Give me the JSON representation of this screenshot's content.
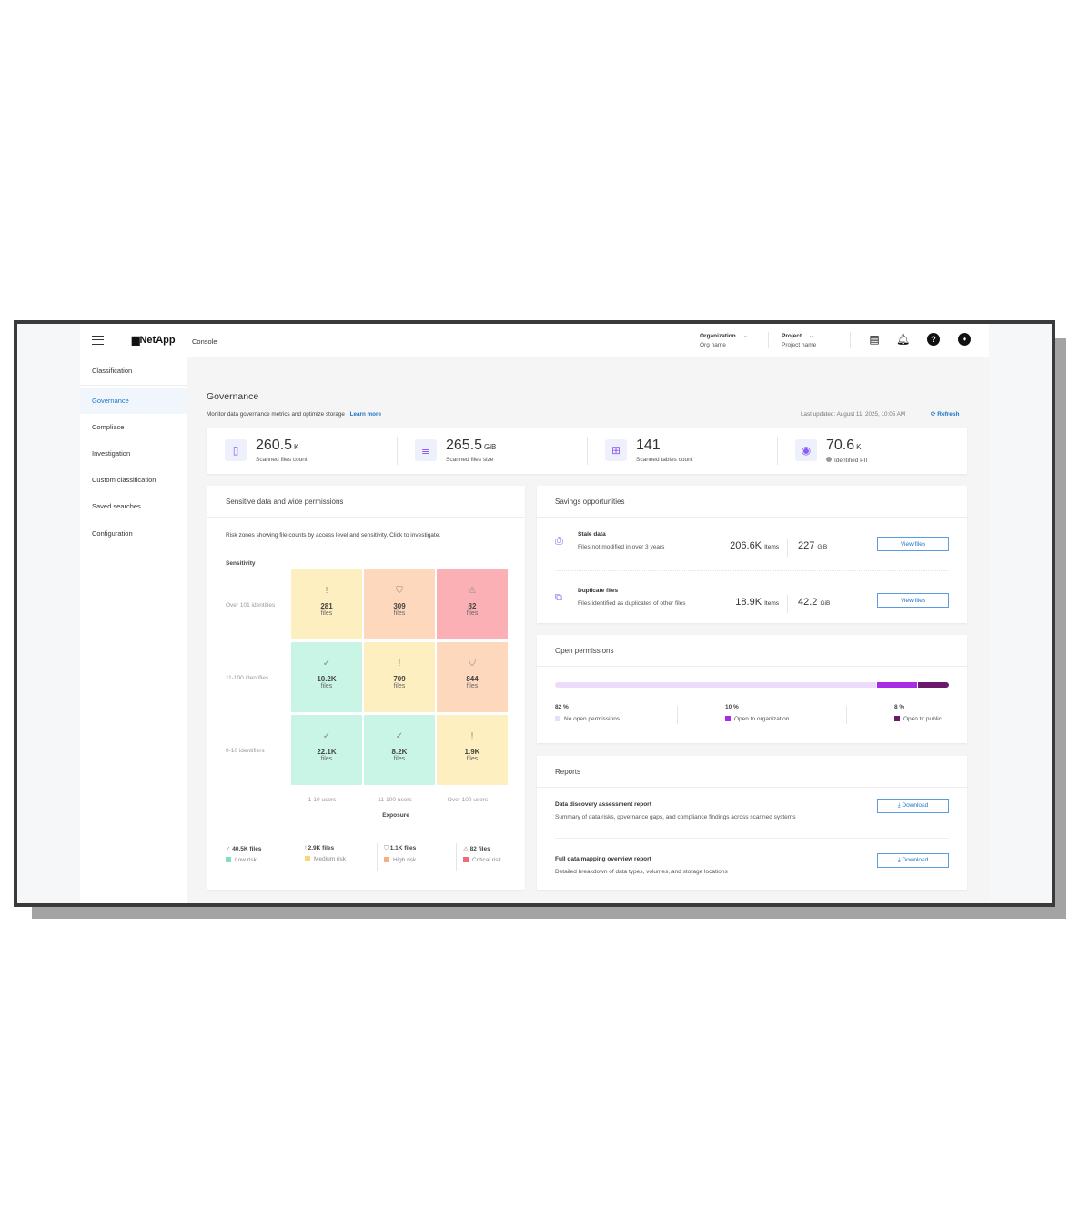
{
  "header": {
    "app_name": "NetApp",
    "console": "Console",
    "org_label": "Organization",
    "org_value": "Org name",
    "project_label": "Project",
    "project_value": "Project name"
  },
  "sidebar": {
    "items": [
      {
        "label": "Classification"
      },
      {
        "label": "Governance",
        "active": true
      },
      {
        "label": "Compliace"
      },
      {
        "label": "Investigation"
      },
      {
        "label": "Custom classification"
      },
      {
        "label": "Saved searches"
      },
      {
        "label": "Configuration"
      }
    ]
  },
  "page": {
    "title": "Governance",
    "subtitle": "Monitor data governance metrics and optimize storage",
    "learn_more": "Learn more",
    "last_updated": "Last updated: August 11, 2025, 10:05 AM",
    "refresh": "Refresh"
  },
  "stats": [
    {
      "value": "260.5",
      "unit": "K",
      "label": "Scanned files count",
      "icon": "file-icon"
    },
    {
      "value": "265.5",
      "unit": "GiB",
      "label": "Scanned files size",
      "icon": "database-icon"
    },
    {
      "value": "141",
      "unit": "",
      "label": "Scanned tables count",
      "icon": "table-icon"
    },
    {
      "value": "70.6",
      "unit": "K",
      "label": "Identified PII",
      "icon": "pii-icon"
    }
  ],
  "sensitive": {
    "title": "Sensitive data and wide permissions",
    "description": "Risk zones showing file counts by access level and sensitivity. Click to investigate.",
    "y_axis": "Sensitivity",
    "x_axis": "Exposure",
    "rows": [
      "Over 101 identifies",
      "11-100 identifies",
      "0-10 identifiers"
    ],
    "cols": [
      "1-10 users",
      "11-100 users",
      "Over 100 users"
    ],
    "cells": [
      [
        {
          "count": "281",
          "unit": "files",
          "risk": "medium"
        },
        {
          "count": "309",
          "unit": "files",
          "risk": "high"
        },
        {
          "count": "82",
          "unit": "files",
          "risk": "critical"
        }
      ],
      [
        {
          "count": "10.2K",
          "unit": "files",
          "risk": "low"
        },
        {
          "count": "709",
          "unit": "files",
          "risk": "medium"
        },
        {
          "count": "844",
          "unit": "files",
          "risk": "high"
        }
      ],
      [
        {
          "count": "22.1K",
          "unit": "files",
          "risk": "low"
        },
        {
          "count": "8.2K",
          "unit": "files",
          "risk": "low"
        },
        {
          "count": "1.9K",
          "unit": "files",
          "risk": "medium"
        }
      ]
    ],
    "legend": [
      {
        "count": "40.5K files",
        "label": "Low risk",
        "risk": "low"
      },
      {
        "count": "2.9K files",
        "label": "Medium risk",
        "risk": "medium"
      },
      {
        "count": "1.1K files",
        "label": "High risk",
        "risk": "high"
      },
      {
        "count": "82 files",
        "label": "Critical risk",
        "risk": "critical"
      }
    ]
  },
  "colors": {
    "low": "#c8f5e5",
    "medium": "#fdefbf",
    "high": "#fdd8bd",
    "critical": "#fbb0b5",
    "low_sw": "#7fdfc3",
    "medium_sw": "#fcd77a",
    "high_sw": "#f8ae83",
    "critical_sw": "#f06a78",
    "accent": "#1a73c8"
  },
  "savings": {
    "title": "Savings opportunities",
    "items": [
      {
        "title": "Stale data",
        "desc": "Files not modified in over 3 years",
        "items": "206.6K",
        "items_unit": "Items",
        "size": "227",
        "size_unit": "GiB",
        "button": "View files"
      },
      {
        "title": "Duplicate files",
        "desc": "Files identified as duplicates of other files",
        "items": "18.9K",
        "items_unit": "Items",
        "size": "42.2",
        "size_unit": "GiB",
        "button": "View files"
      }
    ]
  },
  "permissions": {
    "title": "Open permissions",
    "segments": [
      {
        "percent": 82,
        "label_pct": "82 %",
        "label": "No open permissions",
        "color": "#ecdcfb"
      },
      {
        "percent": 10,
        "label_pct": "10 %",
        "label": "Open to organization",
        "color": "#a92be6"
      },
      {
        "percent": 8,
        "label_pct": "8 %",
        "label": "Open to public",
        "color": "#6b1a6b"
      }
    ]
  },
  "reports": {
    "title": "Reports",
    "items": [
      {
        "title": "Data discovery assessment report",
        "desc": "Summary of data risks, governance gaps, and compliance findings across scanned systems",
        "button": "Download"
      },
      {
        "title": "Full data mapping overview report",
        "desc": "Detailed breakdown of data types, volumes, and storage locations",
        "button": "Download"
      }
    ]
  }
}
